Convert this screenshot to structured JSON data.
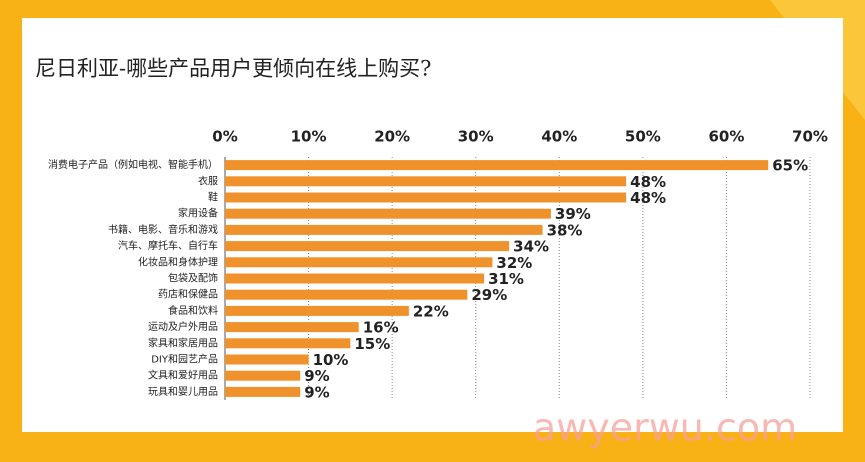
{
  "chart_data": {
    "type": "bar",
    "orientation": "horizontal",
    "title": "尼日利亚-哪些产品用户更倾向在线上购买?",
    "categories": [
      "消费电子产品（例如电视、智能手机）",
      "衣服",
      "鞋",
      "家用设备",
      "书籍、电影、音乐和游戏",
      "汽车、摩托车、自行车",
      "化妆品和身体护理",
      "包袋及配饰",
      "药店和保健品",
      "食品和饮料",
      "运动及户外用品",
      "家具和家居用品",
      "DIY和园艺产品",
      "文具和爱好用品",
      "玩具和婴儿用品"
    ],
    "values": [
      65,
      48,
      48,
      39,
      38,
      34,
      32,
      31,
      29,
      22,
      16,
      15,
      10,
      9,
      9
    ],
    "value_labels": [
      "65%",
      "48%",
      "48%",
      "39%",
      "38%",
      "34%",
      "32%",
      "31%",
      "29%",
      "22%",
      "16%",
      "15%",
      "10%",
      "9%",
      "9%"
    ],
    "color": "#f0922b",
    "xlim": [
      0,
      70
    ],
    "xticks": [
      {
        "value": 0,
        "label": "0%"
      },
      {
        "value": 10,
        "label": "10%"
      },
      {
        "value": 20,
        "label": "20%"
      },
      {
        "value": 30,
        "label": "30%"
      },
      {
        "value": 40,
        "label": "40%"
      },
      {
        "value": 50,
        "label": "50%"
      },
      {
        "value": 60,
        "label": "60%"
      },
      {
        "value": 70,
        "label": "70%"
      }
    ],
    "grid": true,
    "watermark": "awyerwu.com"
  }
}
